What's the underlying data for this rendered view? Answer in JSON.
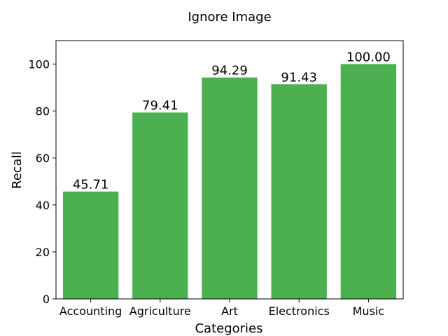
{
  "chart_data": {
    "type": "bar",
    "title": "Ignore Image",
    "xlabel": "Categories",
    "ylabel": "Recall",
    "categories": [
      "Accounting",
      "Agriculture",
      "Art",
      "Electronics",
      "Music"
    ],
    "values": [
      45.71,
      79.41,
      94.29,
      91.43,
      100.0
    ],
    "value_labels": [
      "45.71",
      "79.41",
      "94.29",
      "91.43",
      "100.00"
    ],
    "ylim": [
      0,
      110
    ],
    "yticks": [
      0,
      20,
      40,
      60,
      80,
      100
    ],
    "bar_color": "#4caf50",
    "grid": false,
    "legend": "none"
  }
}
